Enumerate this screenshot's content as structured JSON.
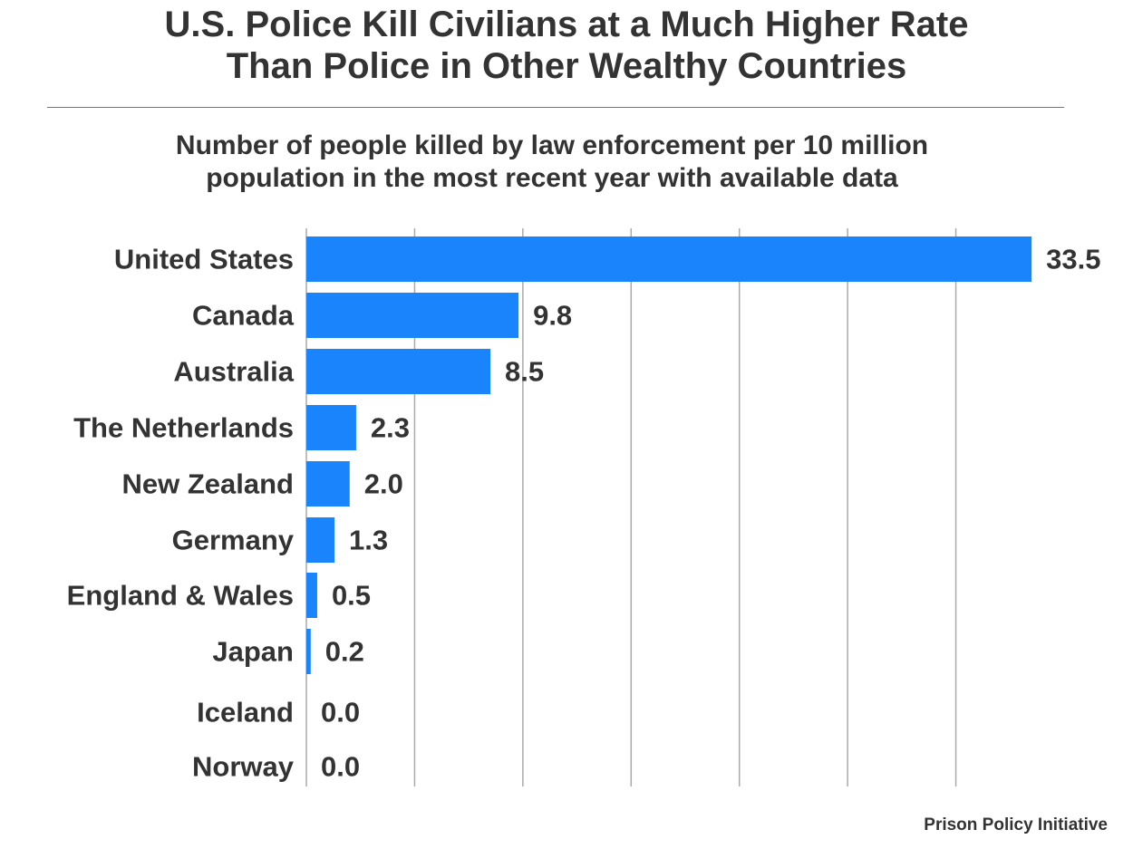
{
  "title_lines": [
    "U.S. Police Kill Civilians at a Much Higher Rate",
    "Than Police in Other Wealthy Countries"
  ],
  "source": "Prison Policy Initiative",
  "colors": {
    "bar": "#1a84fd",
    "gridline": "#aaaaaa",
    "text": "#333333"
  },
  "chart_data": {
    "type": "bar",
    "orientation": "horizontal",
    "title": "Number of people killed by law enforcement per 10 million population in the most recent year with available data",
    "subtitle_lines": [
      "Number of people killed by law enforcement per 10 million",
      "population in the most recent year with available data"
    ],
    "categories": [
      "United States",
      "Canada",
      "Australia",
      "The Netherlands",
      "New Zealand",
      "Germany",
      "England & Wales",
      "Japan",
      "Iceland",
      "Norway"
    ],
    "values": [
      33.5,
      9.8,
      8.5,
      2.3,
      2.0,
      1.3,
      0.5,
      0.2,
      0.0,
      0.0
    ],
    "value_labels": [
      "33.5",
      "9.8",
      "8.5",
      "2.3",
      "2.0",
      "1.3",
      "0.5",
      "0.2",
      "0.0",
      "0.0"
    ],
    "xlim": [
      0,
      35
    ],
    "grid_step": 5,
    "grid": true,
    "axis_ticks_labeled": false,
    "legend": "none"
  }
}
